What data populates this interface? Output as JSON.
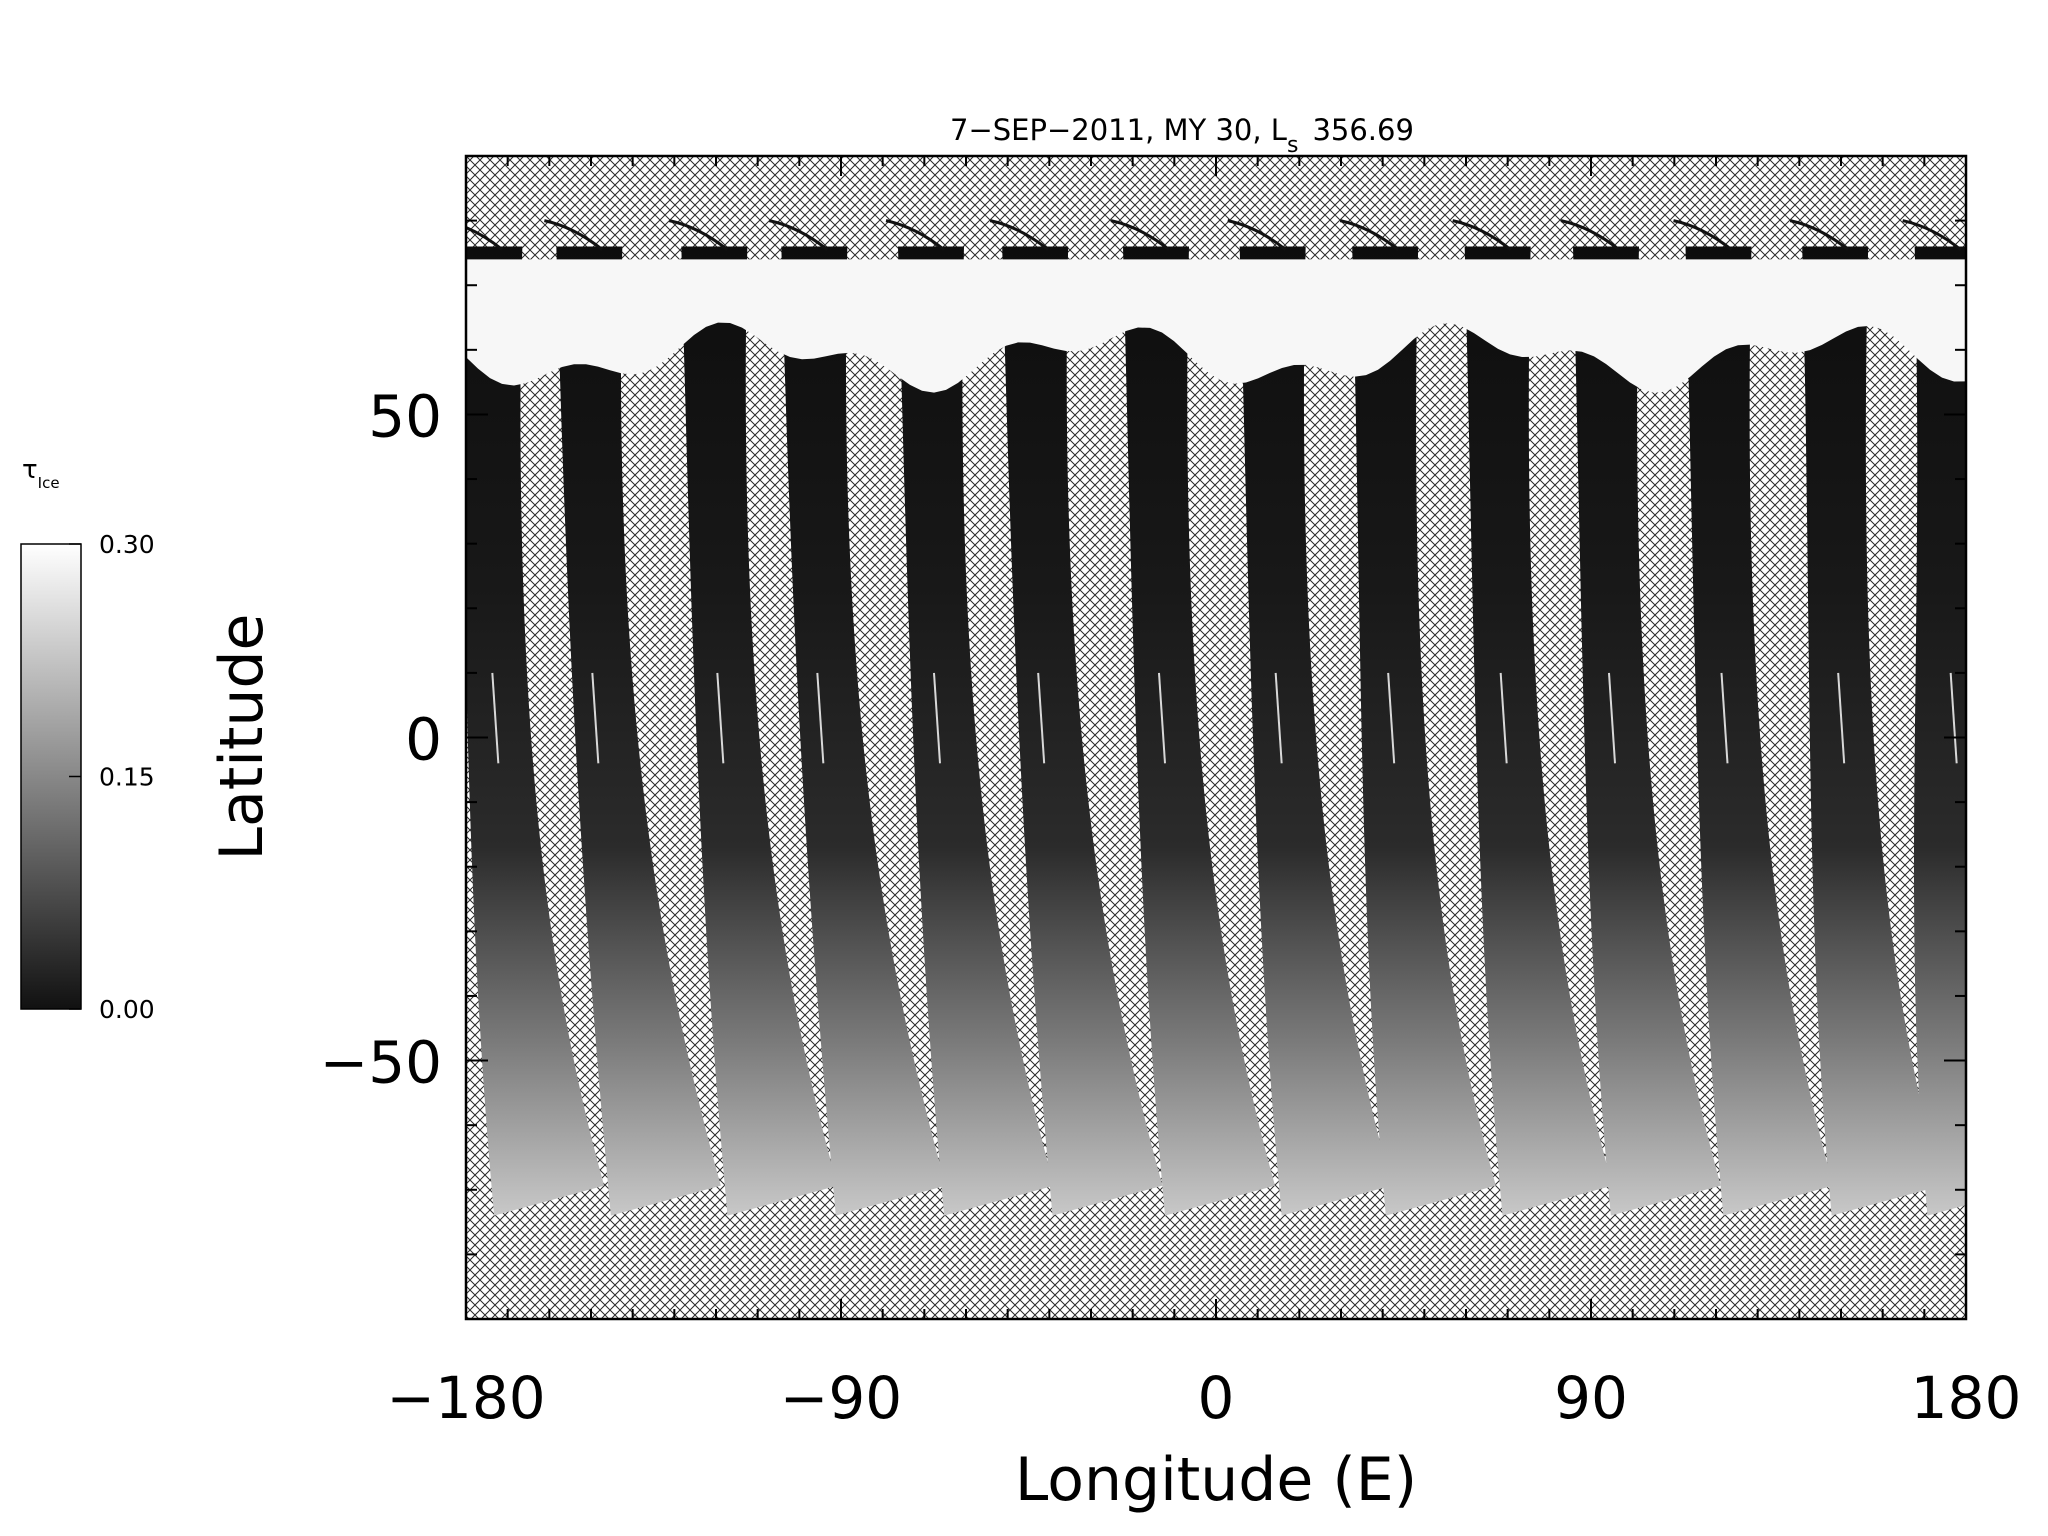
{
  "chart_data": {
    "type": "heatmap",
    "title_main": "7−SEP−2011, MY 30,  L",
    "title_sub": "s",
    "title_value": "356.69",
    "xlabel": "Longitude (E)",
    "ylabel": "Latitude",
    "xlim": [
      -180,
      180
    ],
    "ylim": [
      -90,
      90
    ],
    "x_ticks": [
      {
        "value": -180,
        "label": "−180"
      },
      {
        "value": -90,
        "label": "−90"
      },
      {
        "value": 0,
        "label": "0"
      },
      {
        "value": 90,
        "label": "90"
      },
      {
        "value": 180,
        "label": "180"
      }
    ],
    "y_ticks": [
      {
        "value": 50,
        "label": "50"
      },
      {
        "value": 0,
        "label": "0"
      },
      {
        "value": -50,
        "label": "−50"
      }
    ],
    "colorbar": {
      "label_main": "τ",
      "label_sub": "Ice",
      "range": [
        0.0,
        0.3
      ],
      "ticks": [
        {
          "value": 0.3,
          "label": "0.30"
        },
        {
          "value": 0.15,
          "label": "0.15"
        },
        {
          "value": 0.0,
          "label": "0.00"
        }
      ],
      "colormap": "grayscale",
      "low_color": "#111111",
      "high_color": "#ffffff"
    },
    "no_data_fill": "crosshatch",
    "north_cap_edge_lat": 55,
    "orbit_swaths": [
      {
        "lon_top": -178,
        "lon_bottom": -164
      },
      {
        "lon_top": -154,
        "lon_bottom": -136
      },
      {
        "lon_top": -124,
        "lon_bottom": -108
      },
      {
        "lon_top": -100,
        "lon_bottom": -82
      },
      {
        "lon_top": -72,
        "lon_bottom": -56
      },
      {
        "lon_top": -47,
        "lon_bottom": -30
      },
      {
        "lon_top": -18,
        "lon_bottom": -3
      },
      {
        "lon_top": 10,
        "lon_bottom": 25
      },
      {
        "lon_top": 37,
        "lon_bottom": 50
      },
      {
        "lon_top": 64,
        "lon_bottom": 78
      },
      {
        "lon_top": 90,
        "lon_bottom": 104
      },
      {
        "lon_top": 117,
        "lon_bottom": 131
      },
      {
        "lon_top": 145,
        "lon_bottom": 157
      },
      {
        "lon_top": 172,
        "lon_bottom": 180
      }
    ]
  }
}
